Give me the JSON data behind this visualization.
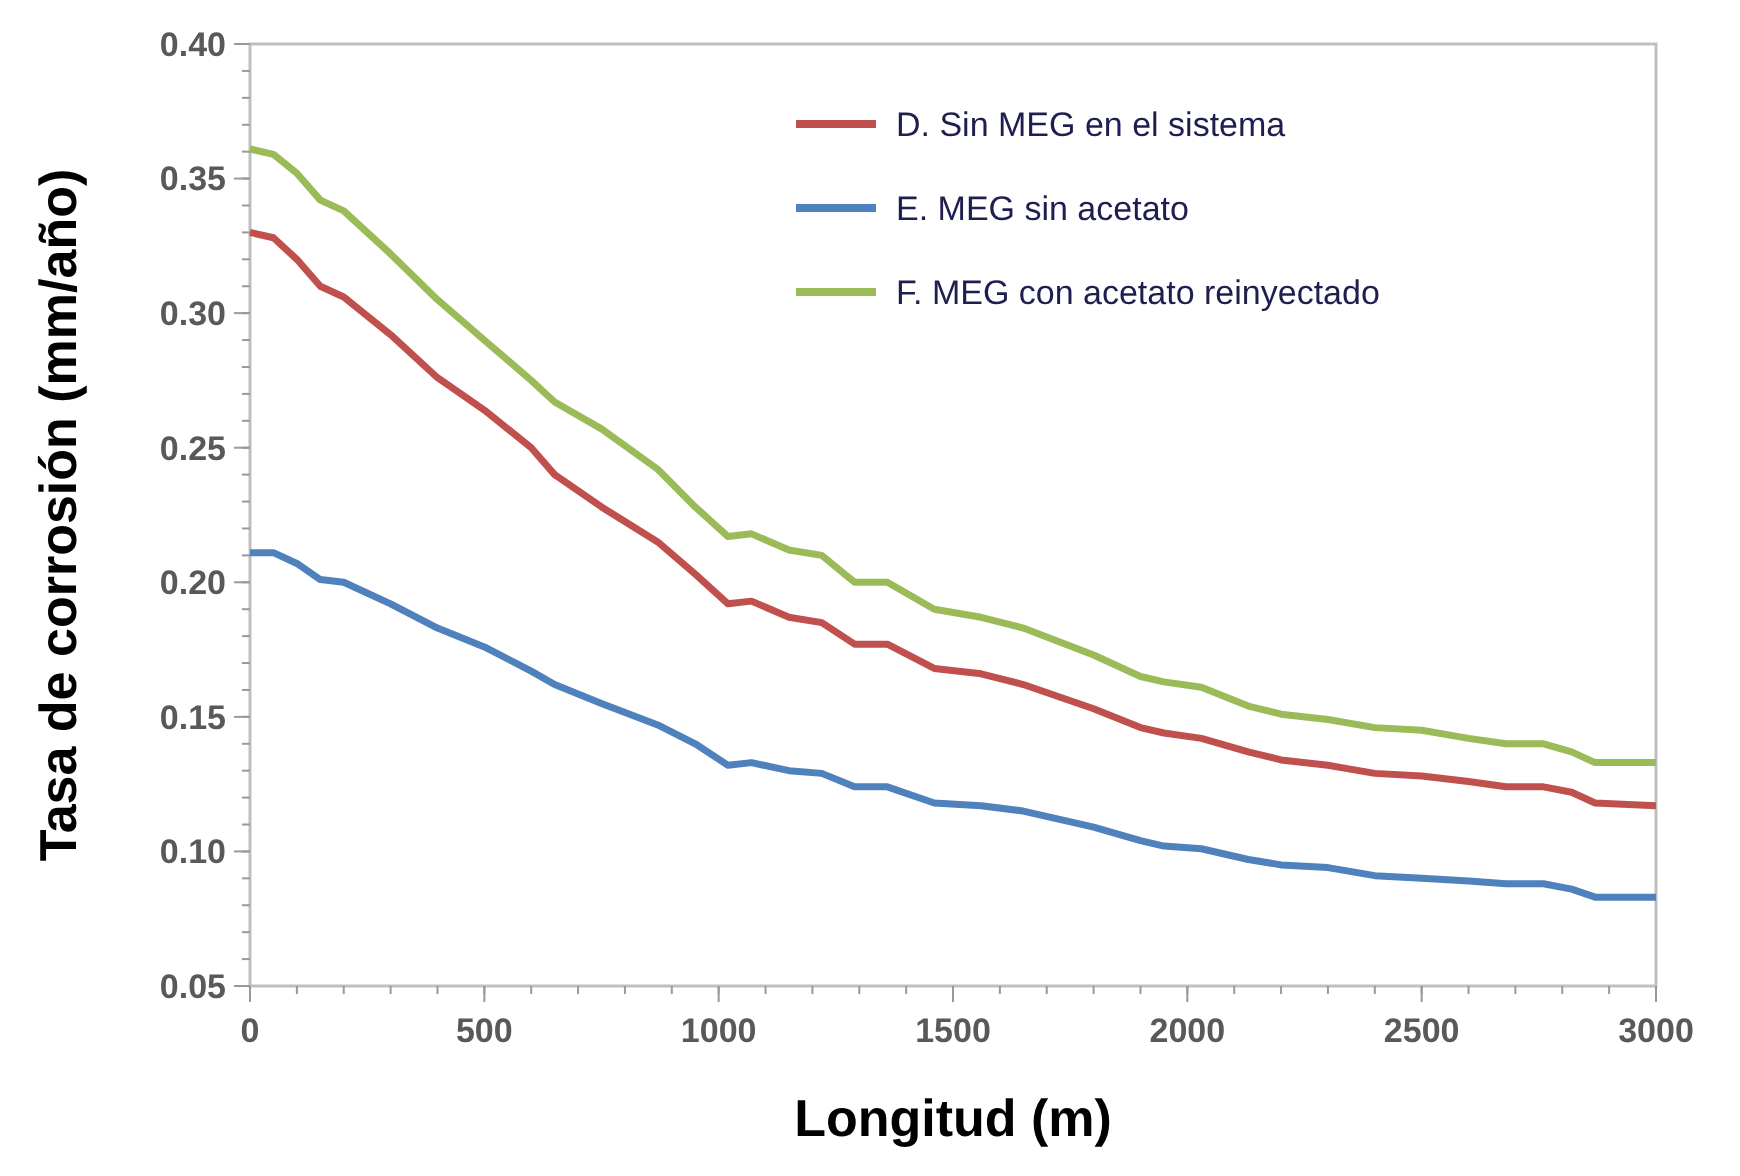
{
  "chart_data": {
    "type": "line",
    "xlabel": "Longitud (m)",
    "ylabel": "Tasa de corrosión (mm/año)",
    "x": [
      0,
      50,
      100,
      150,
      200,
      300,
      400,
      500,
      600,
      650,
      750,
      870,
      950,
      1020,
      1070,
      1150,
      1220,
      1290,
      1360,
      1460,
      1560,
      1650,
      1800,
      1900,
      1950,
      2030,
      2130,
      2200,
      2300,
      2400,
      2500,
      2600,
      2680,
      2760,
      2820,
      2870,
      3000
    ],
    "series": [
      {
        "name": "D. Sin MEG en el sistema",
        "color": "#c0504d",
        "values": [
          0.33,
          0.328,
          0.32,
          0.31,
          0.306,
          0.292,
          0.276,
          0.264,
          0.25,
          0.24,
          0.228,
          0.215,
          0.203,
          0.192,
          0.193,
          0.187,
          0.185,
          0.177,
          0.177,
          0.168,
          0.166,
          0.162,
          0.153,
          0.146,
          0.144,
          0.142,
          0.137,
          0.134,
          0.132,
          0.129,
          0.128,
          0.126,
          0.124,
          0.124,
          0.122,
          0.118,
          0.117
        ]
      },
      {
        "name": "E. MEG sin acetato",
        "color": "#4f81bd",
        "values": [
          0.211,
          0.211,
          0.207,
          0.201,
          0.2,
          0.192,
          0.183,
          0.176,
          0.167,
          0.162,
          0.155,
          0.147,
          0.14,
          0.132,
          0.133,
          0.13,
          0.129,
          0.124,
          0.124,
          0.118,
          0.117,
          0.115,
          0.109,
          0.104,
          0.102,
          0.101,
          0.097,
          0.095,
          0.094,
          0.091,
          0.09,
          0.089,
          0.088,
          0.088,
          0.086,
          0.083,
          0.083
        ]
      },
      {
        "name": "F. MEG con acetato reinyectado",
        "color": "#9bbb59",
        "values": [
          0.361,
          0.359,
          0.352,
          0.342,
          0.338,
          0.322,
          0.305,
          0.29,
          0.275,
          0.267,
          0.257,
          0.242,
          0.228,
          0.217,
          0.218,
          0.212,
          0.21,
          0.2,
          0.2,
          0.19,
          0.187,
          0.183,
          0.173,
          0.165,
          0.163,
          0.161,
          0.154,
          0.151,
          0.149,
          0.146,
          0.145,
          0.142,
          0.14,
          0.14,
          0.137,
          0.133,
          0.133
        ]
      }
    ],
    "xlim": [
      0,
      3000
    ],
    "xticks": [
      0,
      500,
      1000,
      1500,
      2000,
      2500,
      3000
    ],
    "ylim": [
      0.05,
      0.4
    ],
    "yticks": [
      {
        "value": 0.05,
        "label": "0.05"
      },
      {
        "value": 0.1,
        "label": "0.10"
      },
      {
        "value": 0.15,
        "label": "0.15"
      },
      {
        "value": 0.2,
        "label": "0.20"
      },
      {
        "value": 0.25,
        "label": "0.25"
      },
      {
        "value": 0.3,
        "label": "0.30"
      },
      {
        "value": 0.35,
        "label": "0.35"
      },
      {
        "value": 0.4,
        "label": "0.40"
      }
    ],
    "grid": false,
    "legend": "top right",
    "marker": "none",
    "line_style": "solid"
  }
}
